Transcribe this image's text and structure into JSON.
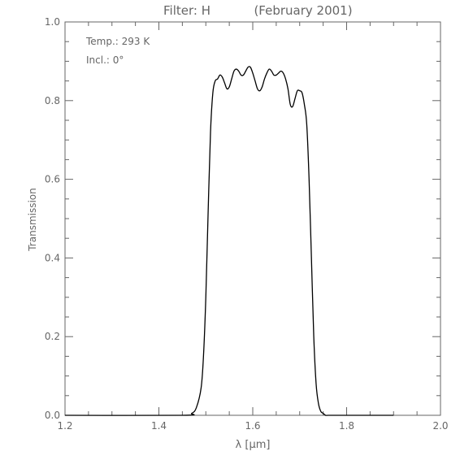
{
  "chart_data": {
    "type": "line",
    "title_left": "Filter: H",
    "title_right": "(February 2001)",
    "xlabel": "λ [μm]",
    "ylabel": "Transmission",
    "xlim": [
      1.2,
      2.0
    ],
    "ylim": [
      0.0,
      1.0
    ],
    "x_ticks": [
      1.2,
      1.4,
      1.6,
      1.8,
      2.0
    ],
    "x_tick_labels": [
      "1.2",
      "1.4",
      "1.6",
      "1.8",
      "2.0"
    ],
    "y_ticks": [
      0.0,
      0.2,
      0.4,
      0.6,
      0.8,
      1.0
    ],
    "y_tick_labels": [
      "0.0",
      "0.2",
      "0.4",
      "0.6",
      "0.8",
      "1.0"
    ],
    "grid": false,
    "annotations": [
      "Temp.: 293 K",
      "Incl.: 0°"
    ],
    "series": [
      {
        "color": "#000000",
        "x": [
          1.2,
          1.45,
          1.47,
          1.48,
          1.49,
          1.495,
          1.5,
          1.505,
          1.51,
          1.515,
          1.52,
          1.525,
          1.53,
          1.535,
          1.54,
          1.545,
          1.55,
          1.555,
          1.56,
          1.565,
          1.57,
          1.575,
          1.58,
          1.585,
          1.59,
          1.595,
          1.6,
          1.605,
          1.61,
          1.615,
          1.62,
          1.625,
          1.63,
          1.635,
          1.64,
          1.645,
          1.65,
          1.655,
          1.66,
          1.665,
          1.67,
          1.675,
          1.68,
          1.685,
          1.69,
          1.695,
          1.7,
          1.705,
          1.71,
          1.715,
          1.72,
          1.725,
          1.73,
          1.735,
          1.74,
          1.745,
          1.75,
          1.755,
          1.76,
          1.765,
          1.77,
          1.775,
          1.78,
          1.785,
          1.79,
          1.795,
          1.8,
          1.81,
          1.82,
          1.9
        ],
        "y": [
          0.0,
          0.0,
          0.005,
          0.02,
          0.07,
          0.15,
          0.3,
          0.52,
          0.72,
          0.82,
          0.85,
          0.855,
          0.865,
          0.86,
          0.845,
          0.83,
          0.835,
          0.855,
          0.875,
          0.88,
          0.875,
          0.865,
          0.865,
          0.875,
          0.885,
          0.885,
          0.87,
          0.85,
          0.83,
          0.825,
          0.835,
          0.855,
          0.87,
          0.88,
          0.875,
          0.865,
          0.865,
          0.87,
          0.875,
          0.87,
          0.855,
          0.83,
          0.79,
          0.785,
          0.805,
          0.825,
          0.825,
          0.82,
          0.79,
          0.74,
          0.6,
          0.4,
          0.2,
          0.08,
          0.03,
          0.01,
          0.005,
          0.0,
          0.0,
          0.0,
          0.0,
          0.0,
          0.0,
          0.0,
          0.0,
          0.0,
          0.0,
          0.0,
          0.0,
          0.0
        ]
      }
    ]
  }
}
